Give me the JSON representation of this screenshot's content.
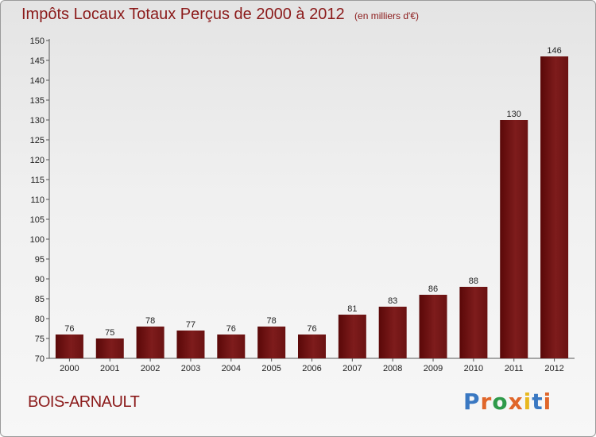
{
  "chart_data": {
    "type": "bar",
    "title": "Impôts Locaux Totaux Perçus de 2000 à 2012",
    "subtitle": "(en milliers d'€)",
    "categories": [
      "2000",
      "2001",
      "2002",
      "2003",
      "2004",
      "2005",
      "2006",
      "2007",
      "2008",
      "2009",
      "2010",
      "2011",
      "2012"
    ],
    "values": [
      76,
      75,
      78,
      77,
      76,
      78,
      76,
      81,
      83,
      86,
      88,
      130,
      146
    ],
    "ylim": [
      70,
      150
    ],
    "yticks": [
      70,
      75,
      80,
      85,
      90,
      95,
      100,
      105,
      110,
      115,
      120,
      125,
      130,
      135,
      140,
      145,
      150
    ],
    "grid": false,
    "bar_color": "#6e1010"
  },
  "place_name": "BOIS-ARNAULT",
  "logo": {
    "text": "Proxiti"
  }
}
